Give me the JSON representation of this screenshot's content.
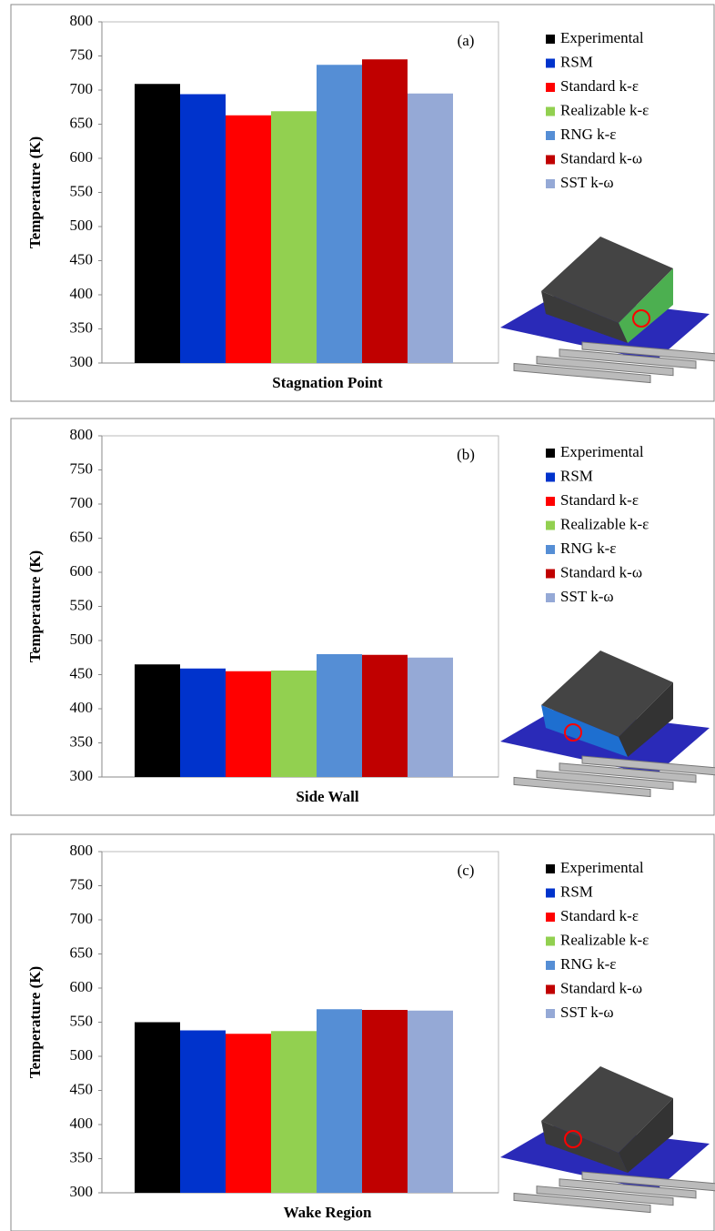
{
  "chart_data": [
    {
      "type": "bar",
      "annotation": "(a)",
      "x_label": "Stagnation Point",
      "y_label": "Temperature (K)",
      "ylim": [
        300,
        800
      ],
      "yticks": [
        300,
        350,
        400,
        450,
        500,
        550,
        600,
        650,
        700,
        750,
        800
      ],
      "grid": false,
      "series": [
        {
          "name": "Experimental",
          "color": "#000000",
          "values": [
            709
          ]
        },
        {
          "name": "RSM",
          "color": "#0033cc",
          "values": [
            694
          ]
        },
        {
          "name": "Standard k-ε",
          "color": "#ff0000",
          "values": [
            663
          ]
        },
        {
          "name": "Realizable k-ε",
          "color": "#92d050",
          "values": [
            669
          ]
        },
        {
          "name": "RNG k-ε",
          "color": "#558ed5",
          "values": [
            737
          ]
        },
        {
          "name": "Standard k-ω",
          "color": "#c00000",
          "values": [
            745
          ]
        },
        {
          "name": "SST k-ω",
          "color": "#95a9d6",
          "values": [
            695
          ]
        }
      ]
    },
    {
      "type": "bar",
      "annotation": "(b)",
      "x_label": "Side Wall",
      "y_label": "Temperature (K)",
      "ylim": [
        300,
        800
      ],
      "yticks": [
        300,
        350,
        400,
        450,
        500,
        550,
        600,
        650,
        700,
        750,
        800
      ],
      "grid": false,
      "series": [
        {
          "name": "Experimental",
          "color": "#000000",
          "values": [
            465
          ]
        },
        {
          "name": "RSM",
          "color": "#0033cc",
          "values": [
            459
          ]
        },
        {
          "name": "Standard k-ε",
          "color": "#ff0000",
          "values": [
            455
          ]
        },
        {
          "name": "Realizable k-ε",
          "color": "#92d050",
          "values": [
            456
          ]
        },
        {
          "name": "RNG k-ε",
          "color": "#558ed5",
          "values": [
            480
          ]
        },
        {
          "name": "Standard k-ω",
          "color": "#c00000",
          "values": [
            479
          ]
        },
        {
          "name": "SST k-ω",
          "color": "#95a9d6",
          "values": [
            475
          ]
        }
      ]
    },
    {
      "type": "bar",
      "annotation": "(c)",
      "x_label": "Wake Region",
      "y_label": "Temperature (K)",
      "ylim": [
        300,
        800
      ],
      "yticks": [
        300,
        350,
        400,
        450,
        500,
        550,
        600,
        650,
        700,
        750,
        800
      ],
      "grid": false,
      "series": [
        {
          "name": "Experimental",
          "color": "#000000",
          "values": [
            550
          ]
        },
        {
          "name": "RSM",
          "color": "#0033cc",
          "values": [
            538
          ]
        },
        {
          "name": "Standard k-ε",
          "color": "#ff0000",
          "values": [
            533
          ]
        },
        {
          "name": "Realizable k-ε",
          "color": "#92d050",
          "values": [
            537
          ]
        },
        {
          "name": "RNG k-ε",
          "color": "#558ed5",
          "values": [
            569
          ]
        },
        {
          "name": "Standard k-ω",
          "color": "#c00000",
          "values": [
            568
          ]
        },
        {
          "name": "SST k-ω",
          "color": "#95a9d6",
          "values": [
            567
          ]
        }
      ]
    }
  ]
}
